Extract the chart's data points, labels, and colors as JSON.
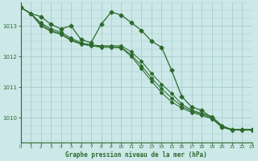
{
  "title": "Graphe pression niveau de la mer (hPa)",
  "bg_color": "#cce8e8",
  "grid_color_major": "#aacccc",
  "line_color": "#2d6a2d",
  "xlim": [
    0,
    23
  ],
  "ylim": [
    1009.2,
    1013.75
  ],
  "yticks": [
    1010,
    1011,
    1012,
    1013
  ],
  "xticks": [
    0,
    1,
    2,
    3,
    4,
    5,
    6,
    7,
    8,
    9,
    10,
    11,
    12,
    13,
    14,
    15,
    16,
    17,
    18,
    19,
    20,
    21,
    22,
    23
  ],
  "series": [
    [
      1013.6,
      1013.4,
      1013.3,
      1013.05,
      1012.9,
      1013.0,
      1012.55,
      1012.45,
      1013.05,
      1013.45,
      1013.35,
      1013.1,
      1012.85,
      1012.5,
      1012.3,
      1011.55,
      1010.7,
      1010.35,
      1010.25,
      1010.0,
      1009.7,
      1009.62,
      1009.62,
      1009.62
    ],
    [
      1013.6,
      1013.4,
      1013.1,
      1012.9,
      1012.8,
      1012.6,
      1012.45,
      1012.38,
      1012.35,
      1012.35,
      1012.35,
      1012.15,
      1011.85,
      1011.45,
      1011.1,
      1010.8,
      1010.45,
      1010.25,
      1010.15,
      1010.05,
      1009.75,
      1009.62,
      1009.62,
      1009.62
    ],
    [
      1013.6,
      1013.4,
      1013.05,
      1012.85,
      1012.75,
      1012.55,
      1012.42,
      1012.36,
      1012.32,
      1012.32,
      1012.3,
      1012.05,
      1011.7,
      1011.3,
      1010.95,
      1010.65,
      1010.38,
      1010.22,
      1010.12,
      1010.0,
      1009.72,
      1009.62,
      1009.62,
      1009.62
    ],
    [
      1013.6,
      1013.4,
      1013.0,
      1012.82,
      1012.72,
      1012.52,
      1012.4,
      1012.35,
      1012.3,
      1012.3,
      1012.28,
      1012.0,
      1011.6,
      1011.2,
      1010.82,
      1010.52,
      1010.32,
      1010.18,
      1010.08,
      1009.97,
      1009.7,
      1009.6,
      1009.6,
      1009.6
    ]
  ]
}
